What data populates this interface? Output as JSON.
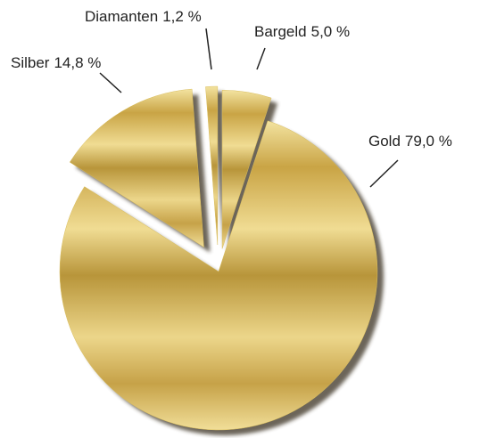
{
  "chart_data": {
    "type": "pie",
    "categories": [
      "Gold",
      "Silber",
      "Diamanten",
      "Bargeld"
    ],
    "values": [
      79.0,
      14.8,
      1.2,
      5.0
    ],
    "value_labels": [
      "79,0 %",
      "14,8 %",
      "1,2 %",
      "5,0 %"
    ],
    "color": "#d9bd5c"
  }
}
